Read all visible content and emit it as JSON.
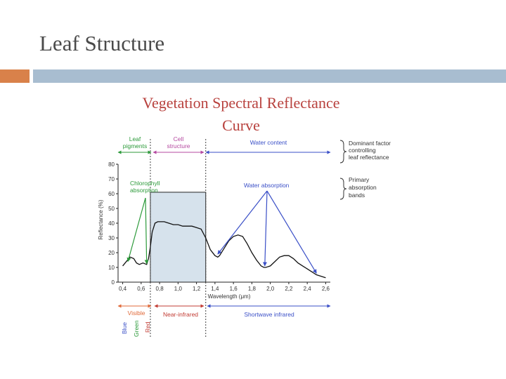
{
  "slide": {
    "title": "Leaf Structure"
  },
  "colors": {
    "accent_orange": "#d9814a",
    "accent_blue": "#a8bdd0",
    "green": "#2c9a3a",
    "purple": "#b54aa0",
    "blue": "#3a4fc7",
    "red": "#c23b33",
    "orange": "#e06a3a"
  },
  "chart_data": {
    "type": "line",
    "title_line1": "Vegetation Spectral Reflectance",
    "title_line2": "Curve",
    "xlabel": "Wavelength (μm)",
    "ylabel": "Reflectance (%)",
    "xlim": [
      0.35,
      2.65
    ],
    "ylim": [
      0,
      80
    ],
    "x_ticks": [
      "0,4",
      "0,6",
      "0,8",
      "1,0",
      "1,2",
      "1,4",
      "1,6",
      "1,8",
      "2,0",
      "2,2",
      "2,4",
      "2,6"
    ],
    "y_ticks": [
      "0",
      "10",
      "20",
      "30",
      "40",
      "50",
      "60",
      "70",
      "80"
    ],
    "x_tick_values": [
      0.4,
      0.6,
      0.8,
      1.0,
      1.2,
      1.4,
      1.6,
      1.8,
      2.0,
      2.2,
      2.4,
      2.6
    ],
    "y_tick_values": [
      0,
      10,
      20,
      30,
      40,
      50,
      60,
      70,
      80
    ],
    "series": [
      {
        "x": [
          0.4,
          0.44,
          0.48,
          0.52,
          0.55,
          0.58,
          0.62,
          0.66,
          0.68,
          0.7,
          0.72,
          0.75,
          0.78,
          0.85,
          0.9,
          0.95,
          1.0,
          1.05,
          1.1,
          1.15,
          1.2,
          1.25,
          1.3,
          1.35,
          1.4,
          1.43,
          1.45,
          1.5,
          1.55,
          1.6,
          1.65,
          1.7,
          1.75,
          1.8,
          1.85,
          1.9,
          1.93,
          1.95,
          2.0,
          2.05,
          2.1,
          2.15,
          2.2,
          2.25,
          2.3,
          2.35,
          2.4,
          2.45,
          2.5,
          2.55,
          2.6
        ],
        "y": [
          11,
          14,
          17,
          16,
          13,
          12,
          13,
          12,
          16,
          24,
          34,
          40,
          41,
          41,
          40,
          39,
          39,
          38,
          38,
          38,
          37,
          36,
          30,
          22,
          18,
          17,
          18,
          23,
          28,
          31,
          32,
          31,
          26,
          20,
          15,
          11,
          10,
          10,
          11,
          14,
          17,
          18,
          18,
          16,
          13,
          11,
          9,
          7,
          5,
          4,
          3
        ]
      }
    ],
    "highlight_region": [
      0.7,
      1.3
    ],
    "regions_top": [
      {
        "label_line1": "Leaf",
        "label_line2": "pigments",
        "x_range": [
          0.4,
          0.7
        ]
      },
      {
        "label_line1": "Cell",
        "label_line2": "structure",
        "x_range": [
          0.7,
          1.3
        ]
      },
      {
        "label_line1": "Water content",
        "label_line2": "",
        "x_range": [
          1.3,
          2.6
        ]
      }
    ],
    "side_notes": [
      {
        "lines": [
          "Dominant factor",
          "controlling",
          "leaf reflectance"
        ]
      },
      {
        "lines": [
          "Primary",
          "absorption",
          "bands"
        ]
      }
    ],
    "annotations": [
      {
        "line1": "Chlorophyll",
        "line2": "absorption"
      },
      {
        "line1": "Water absorption",
        "line2": ""
      }
    ],
    "bands_bottom": [
      {
        "label": "Visible",
        "x_range": [
          0.4,
          0.7
        ]
      },
      {
        "label": "Near-infrared",
        "x_range": [
          0.7,
          1.3
        ]
      },
      {
        "label": "Shortwave infrared",
        "x_range": [
          1.3,
          2.6
        ]
      }
    ],
    "visible_colors": [
      "Blue",
      "Green",
      "Red"
    ]
  }
}
